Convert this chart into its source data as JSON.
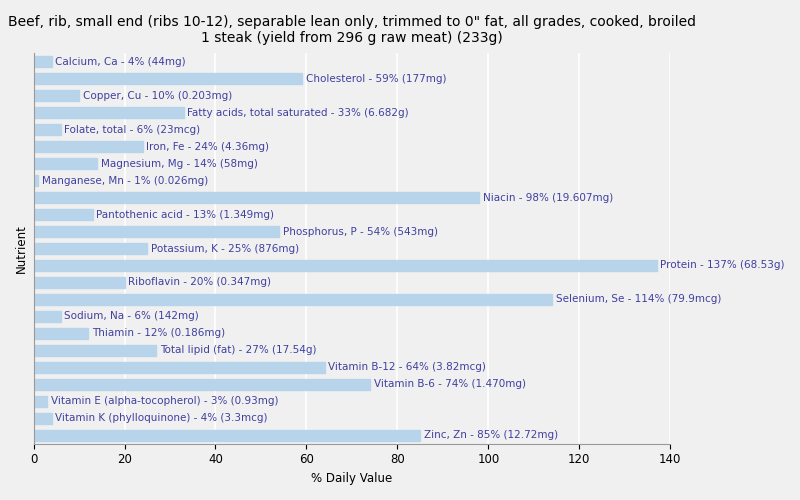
{
  "title": "Beef, rib, small end (ribs 10-12), separable lean only, trimmed to 0\" fat, all grades, cooked, broiled\n1 steak (yield from 296 g raw meat) (233g)",
  "xlabel": "% Daily Value",
  "ylabel": "Nutrient",
  "xlim": [
    0,
    140
  ],
  "xticks": [
    0,
    20,
    40,
    60,
    80,
    100,
    120,
    140
  ],
  "nutrients": [
    {
      "label": "Calcium, Ca - 4% (44mg)",
      "value": 4
    },
    {
      "label": "Cholesterol - 59% (177mg)",
      "value": 59
    },
    {
      "label": "Copper, Cu - 10% (0.203mg)",
      "value": 10
    },
    {
      "label": "Fatty acids, total saturated - 33% (6.682g)",
      "value": 33
    },
    {
      "label": "Folate, total - 6% (23mcg)",
      "value": 6
    },
    {
      "label": "Iron, Fe - 24% (4.36mg)",
      "value": 24
    },
    {
      "label": "Magnesium, Mg - 14% (58mg)",
      "value": 14
    },
    {
      "label": "Manganese, Mn - 1% (0.026mg)",
      "value": 1
    },
    {
      "label": "Niacin - 98% (19.607mg)",
      "value": 98
    },
    {
      "label": "Pantothenic acid - 13% (1.349mg)",
      "value": 13
    },
    {
      "label": "Phosphorus, P - 54% (543mg)",
      "value": 54
    },
    {
      "label": "Potassium, K - 25% (876mg)",
      "value": 25
    },
    {
      "label": "Protein - 137% (68.53g)",
      "value": 137
    },
    {
      "label": "Riboflavin - 20% (0.347mg)",
      "value": 20
    },
    {
      "label": "Selenium, Se - 114% (79.9mcg)",
      "value": 114
    },
    {
      "label": "Sodium, Na - 6% (142mg)",
      "value": 6
    },
    {
      "label": "Thiamin - 12% (0.186mg)",
      "value": 12
    },
    {
      "label": "Total lipid (fat) - 27% (17.54g)",
      "value": 27
    },
    {
      "label": "Vitamin B-12 - 64% (3.82mcg)",
      "value": 64
    },
    {
      "label": "Vitamin B-6 - 74% (1.470mg)",
      "value": 74
    },
    {
      "label": "Vitamin E (alpha-tocopherol) - 3% (0.93mg)",
      "value": 3
    },
    {
      "label": "Vitamin K (phylloquinone) - 4% (3.3mcg)",
      "value": 4
    },
    {
      "label": "Zinc, Zn - 85% (12.72mg)",
      "value": 85
    }
  ],
  "bar_color": "#b8d4ea",
  "bg_color": "#f0f0f0",
  "text_color": "#4040a0",
  "grid_color": "#ffffff",
  "title_fontsize": 10,
  "label_fontsize": 7.5,
  "tick_fontsize": 8.5,
  "ylabel_fontsize": 8.5,
  "bar_height": 0.65
}
